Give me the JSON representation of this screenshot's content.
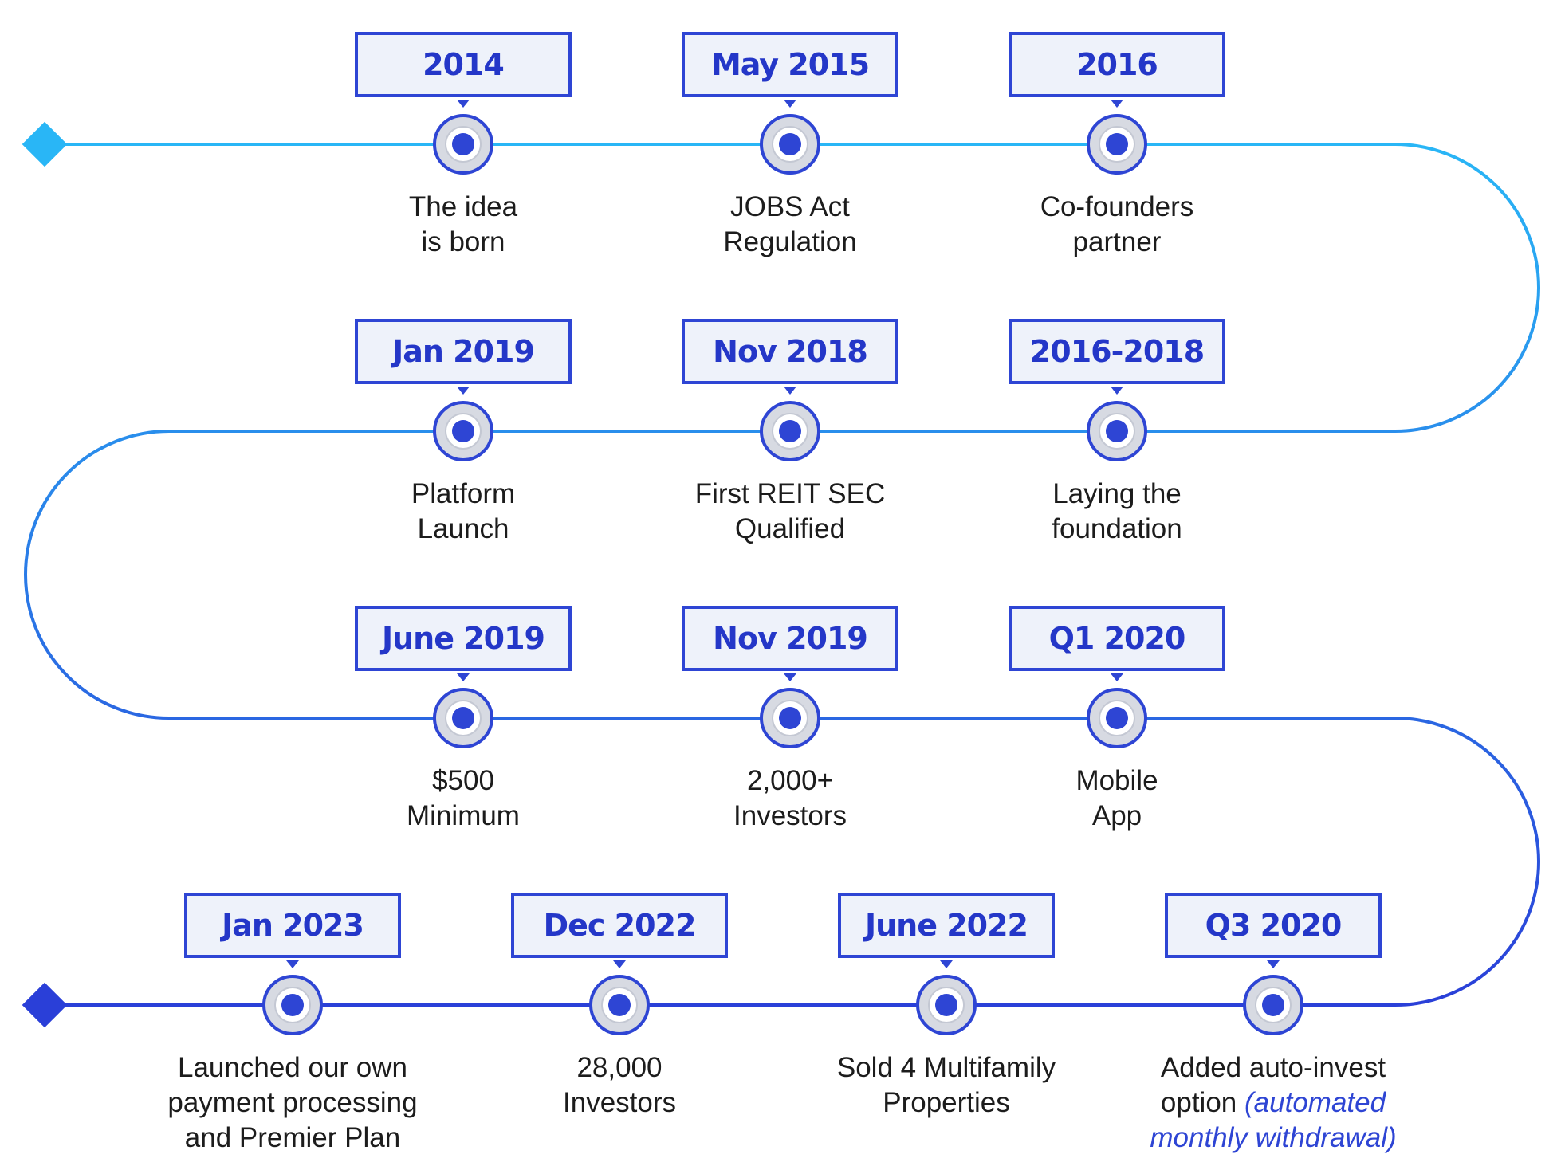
{
  "colors": {
    "accent": "#2e45d4",
    "path_light": "#29b6f6",
    "path_dark": "#2a3fd8",
    "box_fill": "#eef2fa",
    "node_ring": "#d7dae2",
    "text": "#1c1c1c"
  },
  "milestones": [
    {
      "date": "2014",
      "lines": [
        "The idea",
        "is born"
      ]
    },
    {
      "date": "May 2015",
      "lines": [
        "JOBS Act",
        "Regulation"
      ]
    },
    {
      "date": "2016",
      "lines": [
        "Co-founders",
        "partner"
      ]
    },
    {
      "date": "2016-2018",
      "lines": [
        "Laying the",
        "foundation"
      ]
    },
    {
      "date": "Nov 2018",
      "lines": [
        "First REIT SEC",
        "Qualified"
      ]
    },
    {
      "date": "Jan 2019",
      "lines": [
        "Platform",
        "Launch"
      ]
    },
    {
      "date": "June 2019",
      "lines": [
        "$500",
        "Minimum"
      ]
    },
    {
      "date": "Nov 2019",
      "lines": [
        "2,000+",
        "Investors"
      ]
    },
    {
      "date": "Q1 2020",
      "lines": [
        "Mobile",
        "App"
      ]
    },
    {
      "date": "Q3 2020",
      "lines": [
        "Added auto-invest",
        "option"
      ],
      "italic": [
        "(automated",
        "monthly withdrawal)"
      ]
    },
    {
      "date": "June 2022",
      "lines": [
        "Sold 4 Multifamily",
        "Properties"
      ]
    },
    {
      "date": "Dec 2022",
      "lines": [
        "28,000",
        "Investors"
      ]
    },
    {
      "date": "Jan 2023",
      "lines": [
        "Launched our own",
        "payment processing",
        "and Premier Plan"
      ]
    }
  ]
}
